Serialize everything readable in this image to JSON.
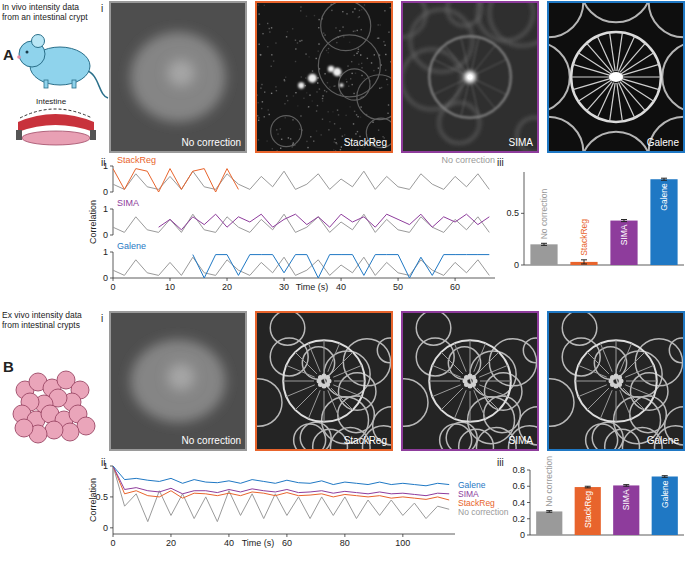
{
  "panels": [
    {
      "letter": "A",
      "caption": [
        "In vivo intensity data",
        "from an intestinal crypt"
      ],
      "organ_label": "Intestine",
      "sublabels": [
        "i",
        "ii",
        "iii"
      ],
      "images": [
        {
          "label": "No correction",
          "color": "#9a9a9a"
        },
        {
          "label": "StackReg",
          "color": "#e8642c"
        },
        {
          "label": "SIMA",
          "color": "#8e3c9c"
        },
        {
          "label": "Galene",
          "color": "#1f78c4"
        }
      ]
    },
    {
      "letter": "B",
      "caption": [
        "Ex vivo intensity data",
        "from intestinal crypts"
      ],
      "sublabels": [
        "i",
        "ii",
        "iii"
      ],
      "images": [
        {
          "label": "No correction",
          "color": "#9a9a9a"
        },
        {
          "label": "StackReg",
          "color": "#e8642c"
        },
        {
          "label": "SIMA",
          "color": "#8e3c9c"
        },
        {
          "label": "Galene",
          "color": "#1f78c4"
        }
      ]
    }
  ],
  "chart_data": [
    {
      "type": "line",
      "xlim": [
        0,
        67
      ],
      "ylim": [
        0,
        1
      ],
      "yticks": [
        0,
        1
      ],
      "tick_labels": "y",
      "x": [
        0,
        2,
        4,
        6,
        8,
        10,
        12,
        14,
        16,
        18,
        20,
        22,
        24,
        26,
        28,
        30,
        32,
        34,
        36,
        38,
        40,
        42,
        44,
        46,
        48,
        50,
        52,
        54,
        56,
        58,
        60,
        62,
        64,
        66
      ],
      "series": [
        {
          "name": "No correction",
          "color": "#9a9a9a",
          "values": [
            0.3,
            0.1,
            0.7,
            0.2,
            0.1,
            0.6,
            0.1,
            0.8,
            0.2,
            0.1,
            0.7,
            0.3,
            0.1,
            0.6,
            0.2,
            0.8,
            0.1,
            0.3,
            0.7,
            0.1,
            0.5,
            0.2,
            0.8,
            0.1,
            0.6,
            0.2,
            0.1,
            0.7,
            0.3,
            0.1,
            0.6,
            0.2,
            0.7,
            0.1
          ]
        },
        {
          "name": "StackReg",
          "color": "#e8642c",
          "values": [
            0.9,
            0.1,
            0.9,
            0.8,
            0.0,
            0.9,
            0.1,
            0.8,
            0.9,
            0.0,
            0.9,
            0.1,
            null,
            null,
            null,
            null,
            null,
            null,
            null,
            null,
            null,
            null,
            null,
            null,
            null,
            null,
            null,
            null,
            null,
            null,
            null,
            null,
            null,
            null
          ]
        }
      ]
    },
    {
      "type": "line",
      "y_label": "Correlation",
      "xlim": [
        0,
        67
      ],
      "ylim": [
        0,
        1
      ],
      "yticks": [
        0,
        1
      ],
      "tick_labels": "y",
      "x": [
        0,
        2,
        4,
        6,
        8,
        10,
        12,
        14,
        16,
        18,
        20,
        22,
        24,
        26,
        28,
        30,
        32,
        34,
        36,
        38,
        40,
        42,
        44,
        46,
        48,
        50,
        52,
        54,
        56,
        58,
        60,
        62,
        64,
        66
      ],
      "series": [
        {
          "color": "#9a9a9a",
          "values": [
            0.3,
            0.1,
            0.7,
            0.2,
            0.1,
            0.6,
            0.1,
            0.8,
            0.2,
            0.1,
            0.7,
            0.3,
            0.1,
            0.6,
            0.2,
            0.8,
            0.1,
            0.3,
            0.7,
            0.1,
            0.5,
            0.2,
            0.8,
            0.1,
            0.6,
            0.2,
            0.1,
            0.7,
            0.3,
            0.1,
            0.6,
            0.2,
            0.7,
            0.1
          ]
        },
        {
          "name": "SIMA",
          "color": "#8e3c9c",
          "values": [
            null,
            null,
            null,
            null,
            0.3,
            0.6,
            0.2,
            0.7,
            0.4,
            0.8,
            0.3,
            0.7,
            0.5,
            0.8,
            0.3,
            0.6,
            0.8,
            0.4,
            0.7,
            0.3,
            0.8,
            0.5,
            0.7,
            0.3,
            0.8,
            0.6,
            0.4,
            0.8,
            0.3,
            0.7,
            0.5,
            0.8,
            0.4,
            0.7
          ]
        }
      ]
    },
    {
      "type": "line",
      "x_label": "Time (s)",
      "xlim": [
        0,
        67
      ],
      "ylim": [
        0,
        1
      ],
      "xticks": [
        0,
        10,
        20,
        30,
        40,
        50,
        60
      ],
      "yticks": [
        0,
        1
      ],
      "x": [
        0,
        2,
        4,
        6,
        8,
        10,
        12,
        14,
        16,
        18,
        20,
        22,
        24,
        26,
        28,
        30,
        32,
        34,
        36,
        38,
        40,
        42,
        44,
        46,
        48,
        50,
        52,
        54,
        56,
        58,
        60,
        62,
        64,
        66
      ],
      "series": [
        {
          "color": "#9a9a9a",
          "values": [
            0.3,
            0.1,
            0.7,
            0.2,
            0.1,
            0.6,
            0.1,
            0.8,
            0.2,
            0.1,
            0.7,
            0.3,
            0.1,
            0.6,
            0.2,
            0.8,
            0.1,
            0.3,
            0.7,
            0.1,
            0.5,
            0.2,
            0.8,
            0.1,
            0.6,
            0.2,
            0.1,
            0.7,
            0.3,
            0.1,
            0.6,
            0.2,
            0.7,
            0.1
          ]
        },
        {
          "name": "Galene",
          "color": "#1f78c4",
          "values": [
            null,
            null,
            null,
            null,
            null,
            null,
            null,
            0.9,
            0.0,
            0.9,
            0.9,
            0.1,
            0.9,
            0.9,
            0.9,
            0.2,
            0.9,
            0.9,
            0.0,
            0.9,
            0.9,
            0.9,
            0.1,
            0.9,
            0.9,
            0.9,
            0.0,
            0.8,
            0.1,
            0.9,
            0.9,
            0.9,
            0.9,
            0.9
          ]
        }
      ]
    },
    {
      "type": "bar",
      "categories": [
        "No correction",
        "StackReg",
        "SIMA",
        "Galene"
      ],
      "values": [
        0.2,
        0.03,
        0.43,
        0.83
      ],
      "errors": [
        0.01,
        0.02,
        0.01,
        0.01
      ],
      "colors": [
        "#9a9a9a",
        "#e8642c",
        "#8e3c9c",
        "#1f78c4"
      ],
      "ylim": [
        0,
        0.9
      ],
      "yticks": [
        0,
        0.5
      ]
    },
    {
      "type": "line",
      "x_label": "Time (s)",
      "y_label": "Correlation",
      "xlim": [
        0,
        118
      ],
      "ylim": [
        -0.1,
        1
      ],
      "xticks": [
        0,
        20,
        40,
        60,
        80,
        100
      ],
      "yticks": [
        0,
        0.5,
        1
      ],
      "x": [
        0,
        4,
        8,
        12,
        16,
        20,
        24,
        28,
        32,
        36,
        40,
        44,
        48,
        52,
        56,
        60,
        64,
        68,
        72,
        76,
        80,
        84,
        88,
        92,
        96,
        100,
        104,
        108,
        112,
        116
      ],
      "series": [
        {
          "name": "No correction",
          "color": "#9a9a9a",
          "values": [
            1.0,
            0.35,
            0.55,
            0.1,
            0.6,
            0.2,
            0.55,
            0.15,
            0.5,
            0.1,
            0.6,
            0.2,
            0.55,
            0.15,
            0.55,
            0.2,
            0.5,
            0.15,
            0.5,
            0.2,
            0.5,
            0.15,
            0.45,
            0.2,
            0.45,
            0.2,
            0.4,
            0.15,
            0.35,
            0.3
          ]
        },
        {
          "name": "StackReg",
          "color": "#e8642c",
          "values": [
            1.0,
            0.55,
            0.6,
            0.52,
            0.5,
            0.6,
            0.48,
            0.56,
            0.55,
            0.52,
            0.56,
            0.52,
            0.58,
            0.56,
            0.52,
            0.57,
            0.52,
            0.53,
            0.55,
            0.5,
            0.54,
            0.52,
            0.5,
            0.52,
            0.48,
            0.5,
            0.48,
            0.46,
            0.5,
            0.45
          ]
        },
        {
          "name": "SIMA",
          "color": "#8e3c9c",
          "values": [
            1.0,
            0.62,
            0.65,
            0.6,
            0.58,
            0.64,
            0.55,
            0.6,
            0.6,
            0.57,
            0.62,
            0.58,
            0.63,
            0.6,
            0.58,
            0.62,
            0.57,
            0.58,
            0.6,
            0.56,
            0.59,
            0.57,
            0.55,
            0.58,
            0.55,
            0.56,
            0.54,
            0.52,
            0.56,
            0.55
          ]
        },
        {
          "name": "Galene",
          "color": "#1f78c4",
          "values": [
            1.0,
            0.78,
            0.8,
            0.77,
            0.75,
            0.8,
            0.72,
            0.78,
            0.74,
            0.73,
            0.76,
            0.72,
            0.78,
            0.75,
            0.72,
            0.77,
            0.73,
            0.72,
            0.76,
            0.7,
            0.74,
            0.72,
            0.7,
            0.74,
            0.7,
            0.72,
            0.7,
            0.68,
            0.72,
            0.7
          ]
        }
      ]
    },
    {
      "type": "bar",
      "categories": [
        "No correction",
        "StackReg",
        "SIMA",
        "Galene"
      ],
      "values": [
        0.29,
        0.59,
        0.61,
        0.72
      ],
      "errors": [
        0.01,
        0.01,
        0.01,
        0.01
      ],
      "colors": [
        "#9a9a9a",
        "#e8642c",
        "#8e3c9c",
        "#1f78c4"
      ],
      "ylim": [
        0,
        0.8
      ],
      "yticks": [
        0,
        0.2,
        0.4,
        0.6,
        0.8
      ]
    }
  ]
}
